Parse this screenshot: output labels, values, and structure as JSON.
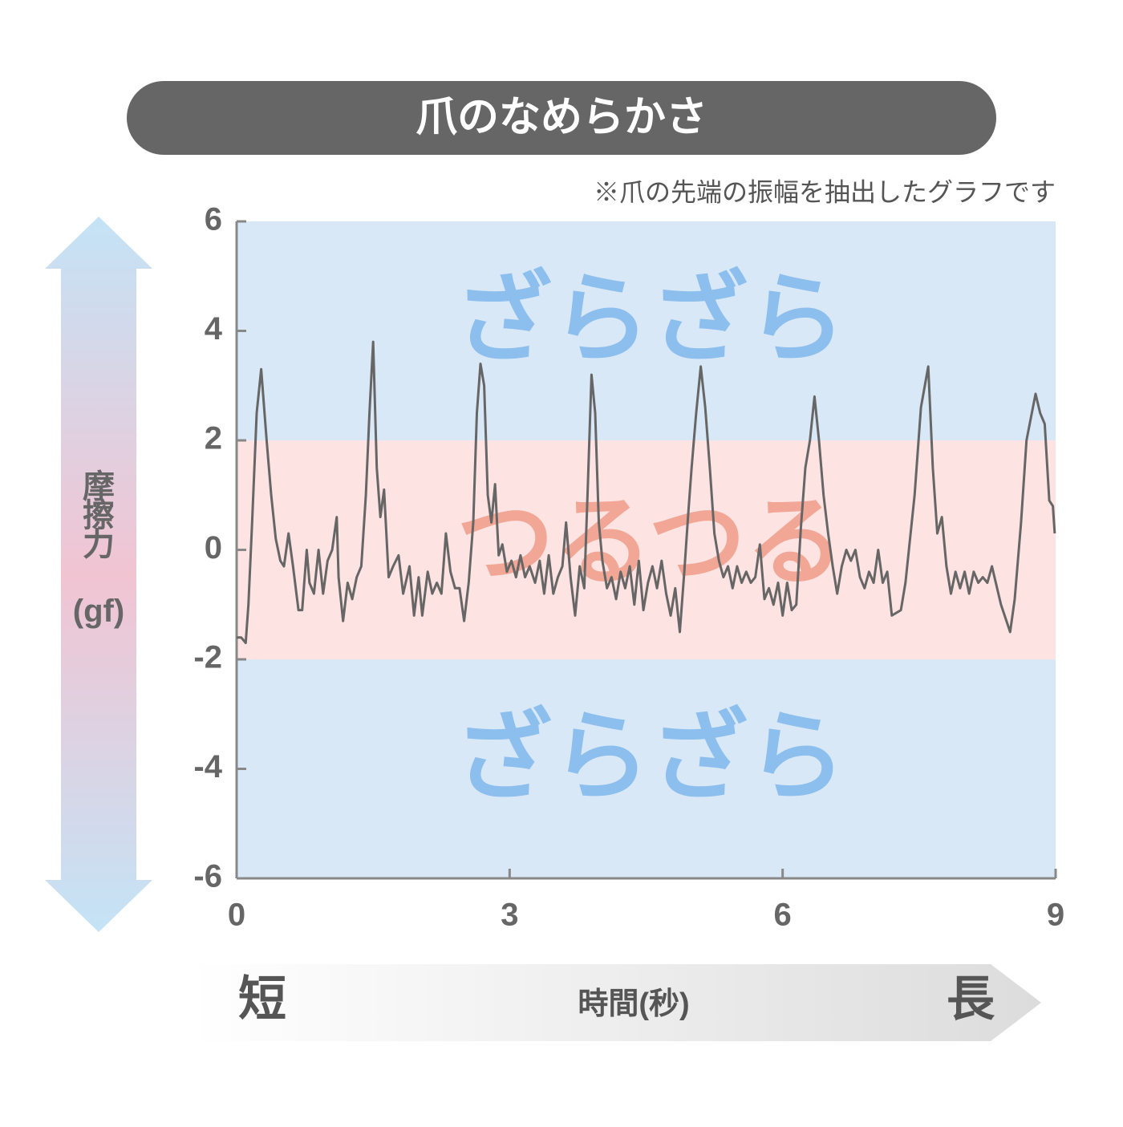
{
  "chart_data": {
    "type": "line",
    "title": "爪のなめらかさ",
    "note": "※爪の先端の振幅を抽出したグラフです",
    "y_label": "摩擦力",
    "y_unit": "(gf)",
    "x_label": "時間(秒)",
    "x_start_label": "短",
    "x_end_label": "長",
    "xlim": [
      0,
      9
    ],
    "xticks": [
      0,
      3,
      6,
      9
    ],
    "ylim": [
      -6,
      6
    ],
    "yticks": [
      -6,
      -4,
      -2,
      0,
      2,
      4,
      6
    ],
    "bands": [
      {
        "label": "ざらざら",
        "range": [
          2,
          6
        ],
        "color": "#d9e8f7",
        "text_color": "#8cbfee"
      },
      {
        "label": "つるつる",
        "range": [
          -2,
          2
        ],
        "color": "#fde3e1",
        "text_color": "#f2a696"
      },
      {
        "label": "ざらざら",
        "range": [
          -6,
          -2
        ],
        "color": "#d9e8f7",
        "text_color": "#8cbfee"
      }
    ],
    "color": "#666666",
    "x": [
      0,
      0.05,
      0.1,
      0.13,
      0.17,
      0.22,
      0.27,
      0.33,
      0.38,
      0.43,
      0.48,
      0.52,
      0.57,
      0.62,
      0.68,
      0.72,
      0.77,
      0.8,
      0.85,
      0.9,
      0.95,
      1.0,
      1.05,
      1.1,
      1.12,
      1.17,
      1.22,
      1.27,
      1.32,
      1.37,
      1.42,
      1.46,
      1.5,
      1.54,
      1.58,
      1.62,
      1.67,
      1.72,
      1.78,
      1.83,
      1.9,
      1.95,
      2.0,
      2.04,
      2.1,
      2.15,
      2.2,
      2.25,
      2.3,
      2.35,
      2.4,
      2.45,
      2.5,
      2.55,
      2.6,
      2.64,
      2.68,
      2.72,
      2.76,
      2.8,
      2.84,
      2.88,
      2.92,
      2.97,
      3.02,
      3.07,
      3.12,
      3.17,
      3.22,
      3.28,
      3.33,
      3.38,
      3.43,
      3.48,
      3.53,
      3.58,
      3.62,
      3.67,
      3.72,
      3.77,
      3.82,
      3.86,
      3.9,
      3.94,
      3.98,
      4.02,
      4.07,
      4.12,
      4.17,
      4.22,
      4.27,
      4.32,
      4.37,
      4.42,
      4.47,
      4.52,
      4.57,
      4.62,
      4.67,
      4.72,
      4.77,
      4.82,
      4.87,
      4.92,
      4.96,
      5.0,
      5.05,
      5.1,
      5.15,
      5.2,
      5.25,
      5.3,
      5.35,
      5.4,
      5.45,
      5.5,
      5.55,
      5.6,
      5.65,
      5.7,
      5.75,
      5.8,
      5.85,
      5.9,
      5.95,
      6.0,
      6.05,
      6.1,
      6.15,
      6.2,
      6.25,
      6.3,
      6.35,
      6.4,
      6.45,
      6.5,
      6.55,
      6.6,
      6.65,
      6.7,
      6.75,
      6.8,
      6.85,
      6.9,
      6.95,
      7.0,
      7.05,
      7.1,
      7.15,
      7.2,
      7.3,
      7.35,
      7.45,
      7.52,
      7.6,
      7.65,
      7.7,
      7.75,
      7.8,
      7.85,
      7.9,
      7.95,
      8.0,
      8.05,
      8.1,
      8.15,
      8.2,
      8.25,
      8.3,
      8.4,
      8.5,
      8.55,
      8.62,
      8.68,
      8.78,
      8.83,
      8.88,
      8.93,
      8.97,
      8.99
    ],
    "values": [
      -1.6,
      -1.6,
      -1.7,
      -1.0,
      0.5,
      2.5,
      3.3,
      2.0,
      1.0,
      0.2,
      -0.2,
      -0.3,
      0.3,
      -0.3,
      -1.1,
      -1.1,
      0,
      -0.6,
      -0.8,
      0,
      -0.8,
      -0.2,
      0,
      0.6,
      -0.5,
      -1.3,
      -0.6,
      -0.9,
      -0.5,
      -0.3,
      1.0,
      2.5,
      3.8,
      1.5,
      0.6,
      1.1,
      -0.5,
      -0.3,
      -0.1,
      -0.8,
      -0.3,
      -1.2,
      -0.5,
      -1.2,
      -0.4,
      -0.8,
      -0.6,
      -0.8,
      0.3,
      -0.4,
      -0.7,
      -0.7,
      -1.3,
      -0.6,
      0.5,
      2.5,
      3.4,
      3.0,
      1.0,
      0.5,
      1.2,
      -0.1,
      0.1,
      -0.4,
      -0.2,
      -0.5,
      -0.1,
      -0.5,
      -0.3,
      -0.6,
      -0.2,
      -0.8,
      -0.1,
      -0.8,
      -0.5,
      -0.3,
      0.5,
      -0.5,
      -1.2,
      -0.3,
      -0.7,
      1.2,
      3.2,
      2.5,
      0.5,
      -0.2,
      -0.7,
      -0.5,
      -0.9,
      -0.4,
      -0.7,
      -0.3,
      -1.0,
      -0.2,
      -1.1,
      -0.6,
      -0.3,
      -0.7,
      -0.2,
      -0.8,
      -1.2,
      -0.7,
      -1.5,
      -0.4,
      0.6,
      1.5,
      2.5,
      3.35,
      2.6,
      1.5,
      0.3,
      -0.2,
      -0.5,
      -0.3,
      -0.7,
      -0.3,
      -0.6,
      -0.4,
      -0.6,
      -0.5,
      0.1,
      -0.9,
      -0.7,
      -1.0,
      -0.6,
      -1.2,
      -0.6,
      -1.1,
      -1.0,
      0.4,
      1.5,
      2.0,
      2.8,
      2.0,
      1.0,
      0.3,
      -0.3,
      -0.8,
      -0.3,
      0,
      -0.2,
      0,
      -0.5,
      -0.7,
      -0.4,
      -0.6,
      0,
      -0.6,
      -0.4,
      -1.2,
      -1.1,
      -0.6,
      1.0,
      2.6,
      3.35,
      1.5,
      0.3,
      0.6,
      -0.3,
      -0.8,
      -0.4,
      -0.7,
      -0.4,
      -0.8,
      -0.4,
      -0.6,
      -0.5,
      -0.6,
      -0.3,
      -1.0,
      -1.5,
      -0.9,
      0.5,
      2.0,
      2.85,
      2.5,
      2.3,
      0.9,
      0.8,
      0.3
    ]
  }
}
